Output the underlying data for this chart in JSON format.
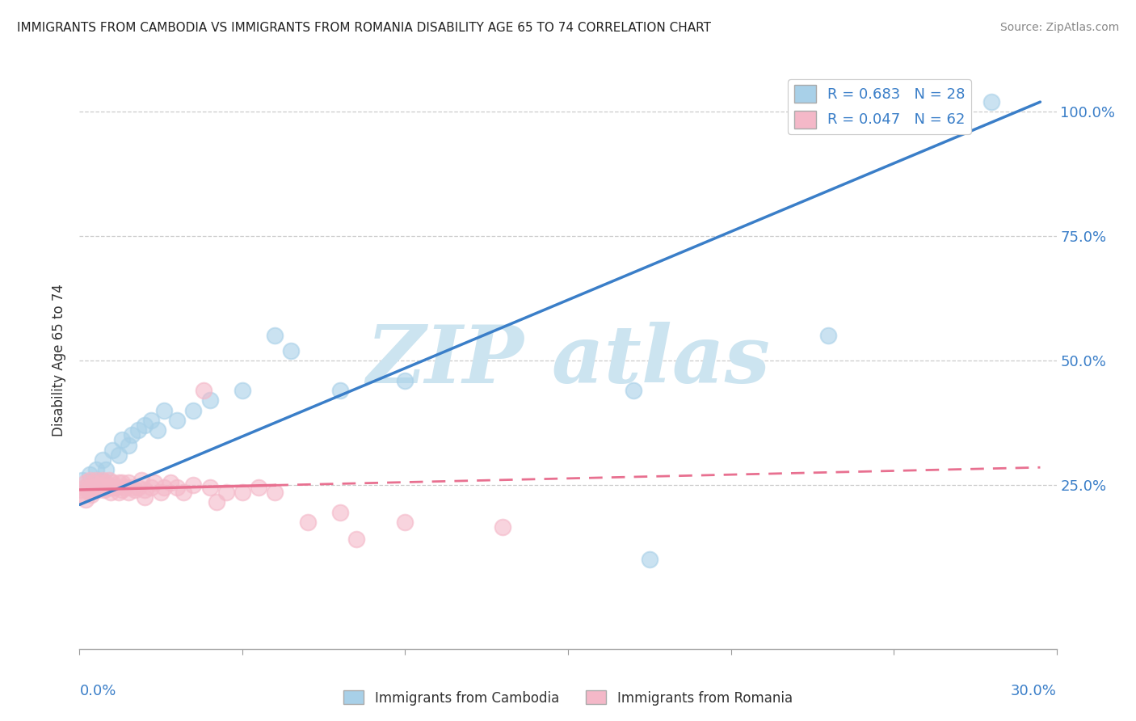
{
  "title": "IMMIGRANTS FROM CAMBODIA VS IMMIGRANTS FROM ROMANIA DISABILITY AGE 65 TO 74 CORRELATION CHART",
  "source": "Source: ZipAtlas.com",
  "ylabel": "Disability Age 65 to 74",
  "y_tick_labels": [
    "25.0%",
    "50.0%",
    "75.0%",
    "100.0%"
  ],
  "y_tick_values": [
    0.25,
    0.5,
    0.75,
    1.0
  ],
  "xlim": [
    0.0,
    0.3
  ],
  "ylim": [
    -0.08,
    1.08
  ],
  "legend_cambodia": "R = 0.683   N = 28",
  "legend_romania": "R = 0.047   N = 62",
  "color_cambodia": "#a8d0e8",
  "color_romania": "#f4b8c8",
  "color_trendline_cambodia": "#3a7ec8",
  "color_trendline_romania": "#e87090",
  "watermark_text": "ZIP atlas",
  "watermark_color": "#cce4f0",
  "cambodia_scatter": [
    [
      0.001,
      0.26
    ],
    [
      0.003,
      0.27
    ],
    [
      0.004,
      0.25
    ],
    [
      0.005,
      0.28
    ],
    [
      0.007,
      0.3
    ],
    [
      0.008,
      0.28
    ],
    [
      0.01,
      0.32
    ],
    [
      0.012,
      0.31
    ],
    [
      0.013,
      0.34
    ],
    [
      0.015,
      0.33
    ],
    [
      0.016,
      0.35
    ],
    [
      0.018,
      0.36
    ],
    [
      0.02,
      0.37
    ],
    [
      0.022,
      0.38
    ],
    [
      0.024,
      0.36
    ],
    [
      0.026,
      0.4
    ],
    [
      0.03,
      0.38
    ],
    [
      0.035,
      0.4
    ],
    [
      0.04,
      0.42
    ],
    [
      0.05,
      0.44
    ],
    [
      0.06,
      0.55
    ],
    [
      0.065,
      0.52
    ],
    [
      0.08,
      0.44
    ],
    [
      0.1,
      0.46
    ],
    [
      0.17,
      0.44
    ],
    [
      0.175,
      0.1
    ],
    [
      0.23,
      0.55
    ],
    [
      0.28,
      1.02
    ]
  ],
  "romania_scatter": [
    [
      0.0005,
      0.24
    ],
    [
      0.001,
      0.23
    ],
    [
      0.0015,
      0.245
    ],
    [
      0.002,
      0.22
    ],
    [
      0.002,
      0.255
    ],
    [
      0.0025,
      0.24
    ],
    [
      0.003,
      0.245
    ],
    [
      0.003,
      0.26
    ],
    [
      0.0035,
      0.23
    ],
    [
      0.004,
      0.255
    ],
    [
      0.004,
      0.245
    ],
    [
      0.0045,
      0.24
    ],
    [
      0.005,
      0.26
    ],
    [
      0.005,
      0.245
    ],
    [
      0.0055,
      0.24
    ],
    [
      0.006,
      0.25
    ],
    [
      0.006,
      0.245
    ],
    [
      0.0065,
      0.255
    ],
    [
      0.007,
      0.245
    ],
    [
      0.007,
      0.26
    ],
    [
      0.0075,
      0.24
    ],
    [
      0.008,
      0.255
    ],
    [
      0.008,
      0.245
    ],
    [
      0.009,
      0.245
    ],
    [
      0.009,
      0.26
    ],
    [
      0.0095,
      0.235
    ],
    [
      0.01,
      0.245
    ],
    [
      0.01,
      0.255
    ],
    [
      0.011,
      0.245
    ],
    [
      0.012,
      0.255
    ],
    [
      0.012,
      0.235
    ],
    [
      0.013,
      0.24
    ],
    [
      0.013,
      0.255
    ],
    [
      0.014,
      0.245
    ],
    [
      0.015,
      0.235
    ],
    [
      0.015,
      0.255
    ],
    [
      0.016,
      0.245
    ],
    [
      0.017,
      0.24
    ],
    [
      0.018,
      0.245
    ],
    [
      0.019,
      0.26
    ],
    [
      0.02,
      0.24
    ],
    [
      0.02,
      0.225
    ],
    [
      0.022,
      0.245
    ],
    [
      0.023,
      0.255
    ],
    [
      0.025,
      0.235
    ],
    [
      0.026,
      0.245
    ],
    [
      0.028,
      0.255
    ],
    [
      0.03,
      0.245
    ],
    [
      0.032,
      0.235
    ],
    [
      0.035,
      0.25
    ],
    [
      0.038,
      0.44
    ],
    [
      0.04,
      0.245
    ],
    [
      0.042,
      0.215
    ],
    [
      0.045,
      0.235
    ],
    [
      0.05,
      0.235
    ],
    [
      0.055,
      0.245
    ],
    [
      0.06,
      0.235
    ],
    [
      0.07,
      0.175
    ],
    [
      0.08,
      0.195
    ],
    [
      0.085,
      0.14
    ],
    [
      0.1,
      0.175
    ],
    [
      0.13,
      0.165
    ]
  ],
  "cambodia_trend_x": [
    0.0,
    0.295
  ],
  "cambodia_trend_y": [
    0.21,
    1.02
  ],
  "romania_trend_x": [
    0.0,
    0.295
  ],
  "romania_trend_y": [
    0.24,
    0.285
  ]
}
